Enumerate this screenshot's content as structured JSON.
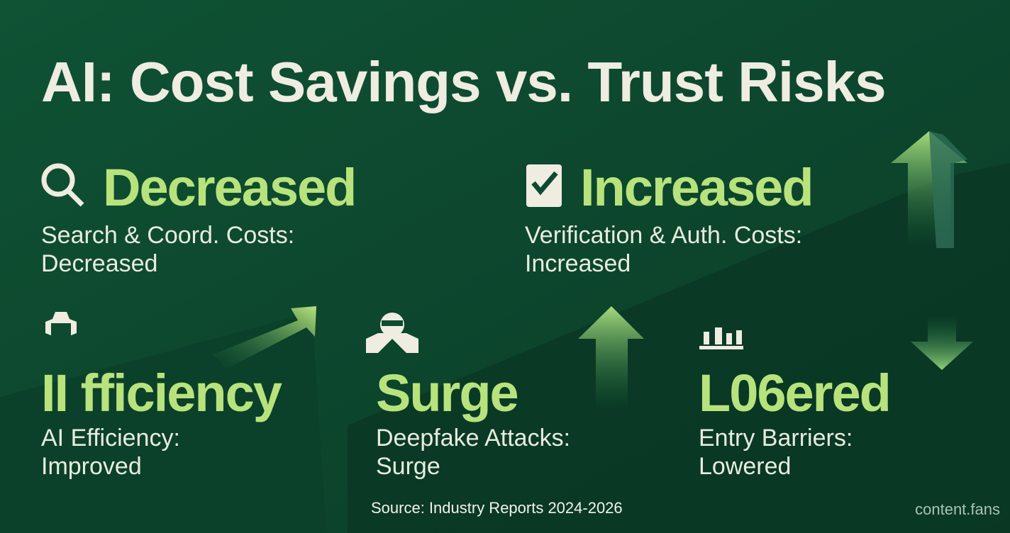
{
  "title": "AI: Cost Savings vs. Trust Risks",
  "cards": [
    {
      "heading": "Decreased",
      "description": "Search & Coord. Costs: Decreased"
    },
    {
      "heading": "Increased",
      "description": "Verification & Auth. Costs: Increased"
    },
    {
      "heading": "II fficiency",
      "description": "AI Efficiency: Improved"
    },
    {
      "heading": "Surge",
      "description": "Deepfake Attacks: Surge"
    },
    {
      "heading": "L06ered",
      "description": "Entry Barriers: Lowered"
    }
  ],
  "footer": {
    "source": "Source: Industry Reports 2024-2026",
    "brand": "content.fans"
  }
}
